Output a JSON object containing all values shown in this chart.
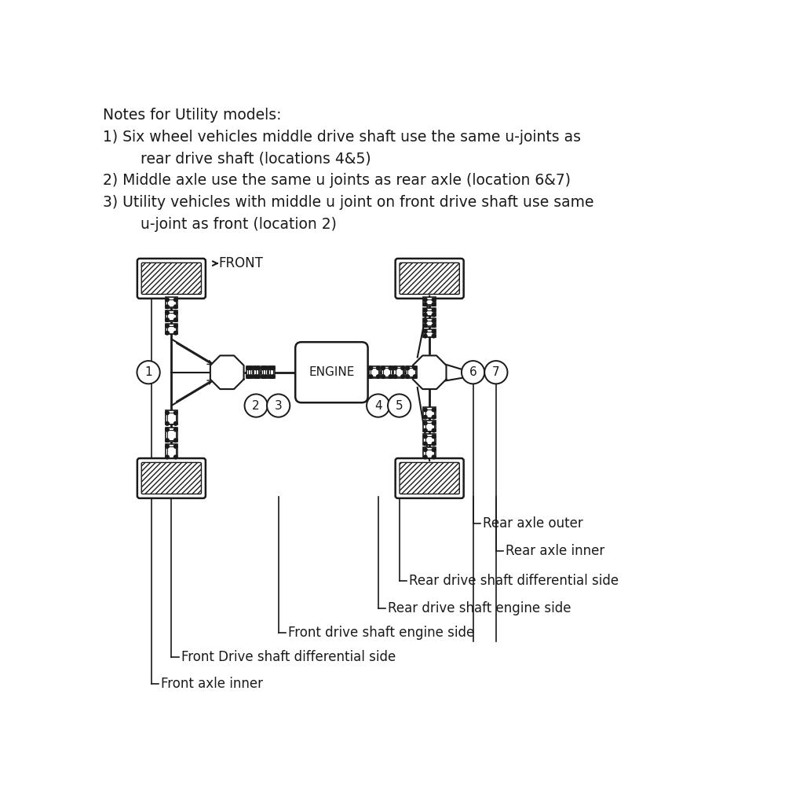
{
  "notes_lines": [
    "Notes for Utility models:",
    "1) Six wheel vehicles middle drive shaft use the same u-joints as",
    "        rear drive shaft (locations 4&5)",
    "2) Middle axle use the same u joints as rear axle (location 6&7)",
    "3) Utility vehicles with middle u joint on front drive shaft use same",
    "        u-joint as front (location 2)"
  ],
  "annotations": [
    "Rear axle outer",
    "Rear axle inner",
    "Rear drive shaft differential side",
    "Rear drive shaft engine side",
    "Front drive shaft engine side",
    "Front Drive shaft differential side",
    "Front axle inner"
  ],
  "bg_color": "#ffffff",
  "line_color": "#1a1a1a",
  "text_color": "#1a1a1a",
  "front_label": "FRONT",
  "engine_label": "ENGINE"
}
